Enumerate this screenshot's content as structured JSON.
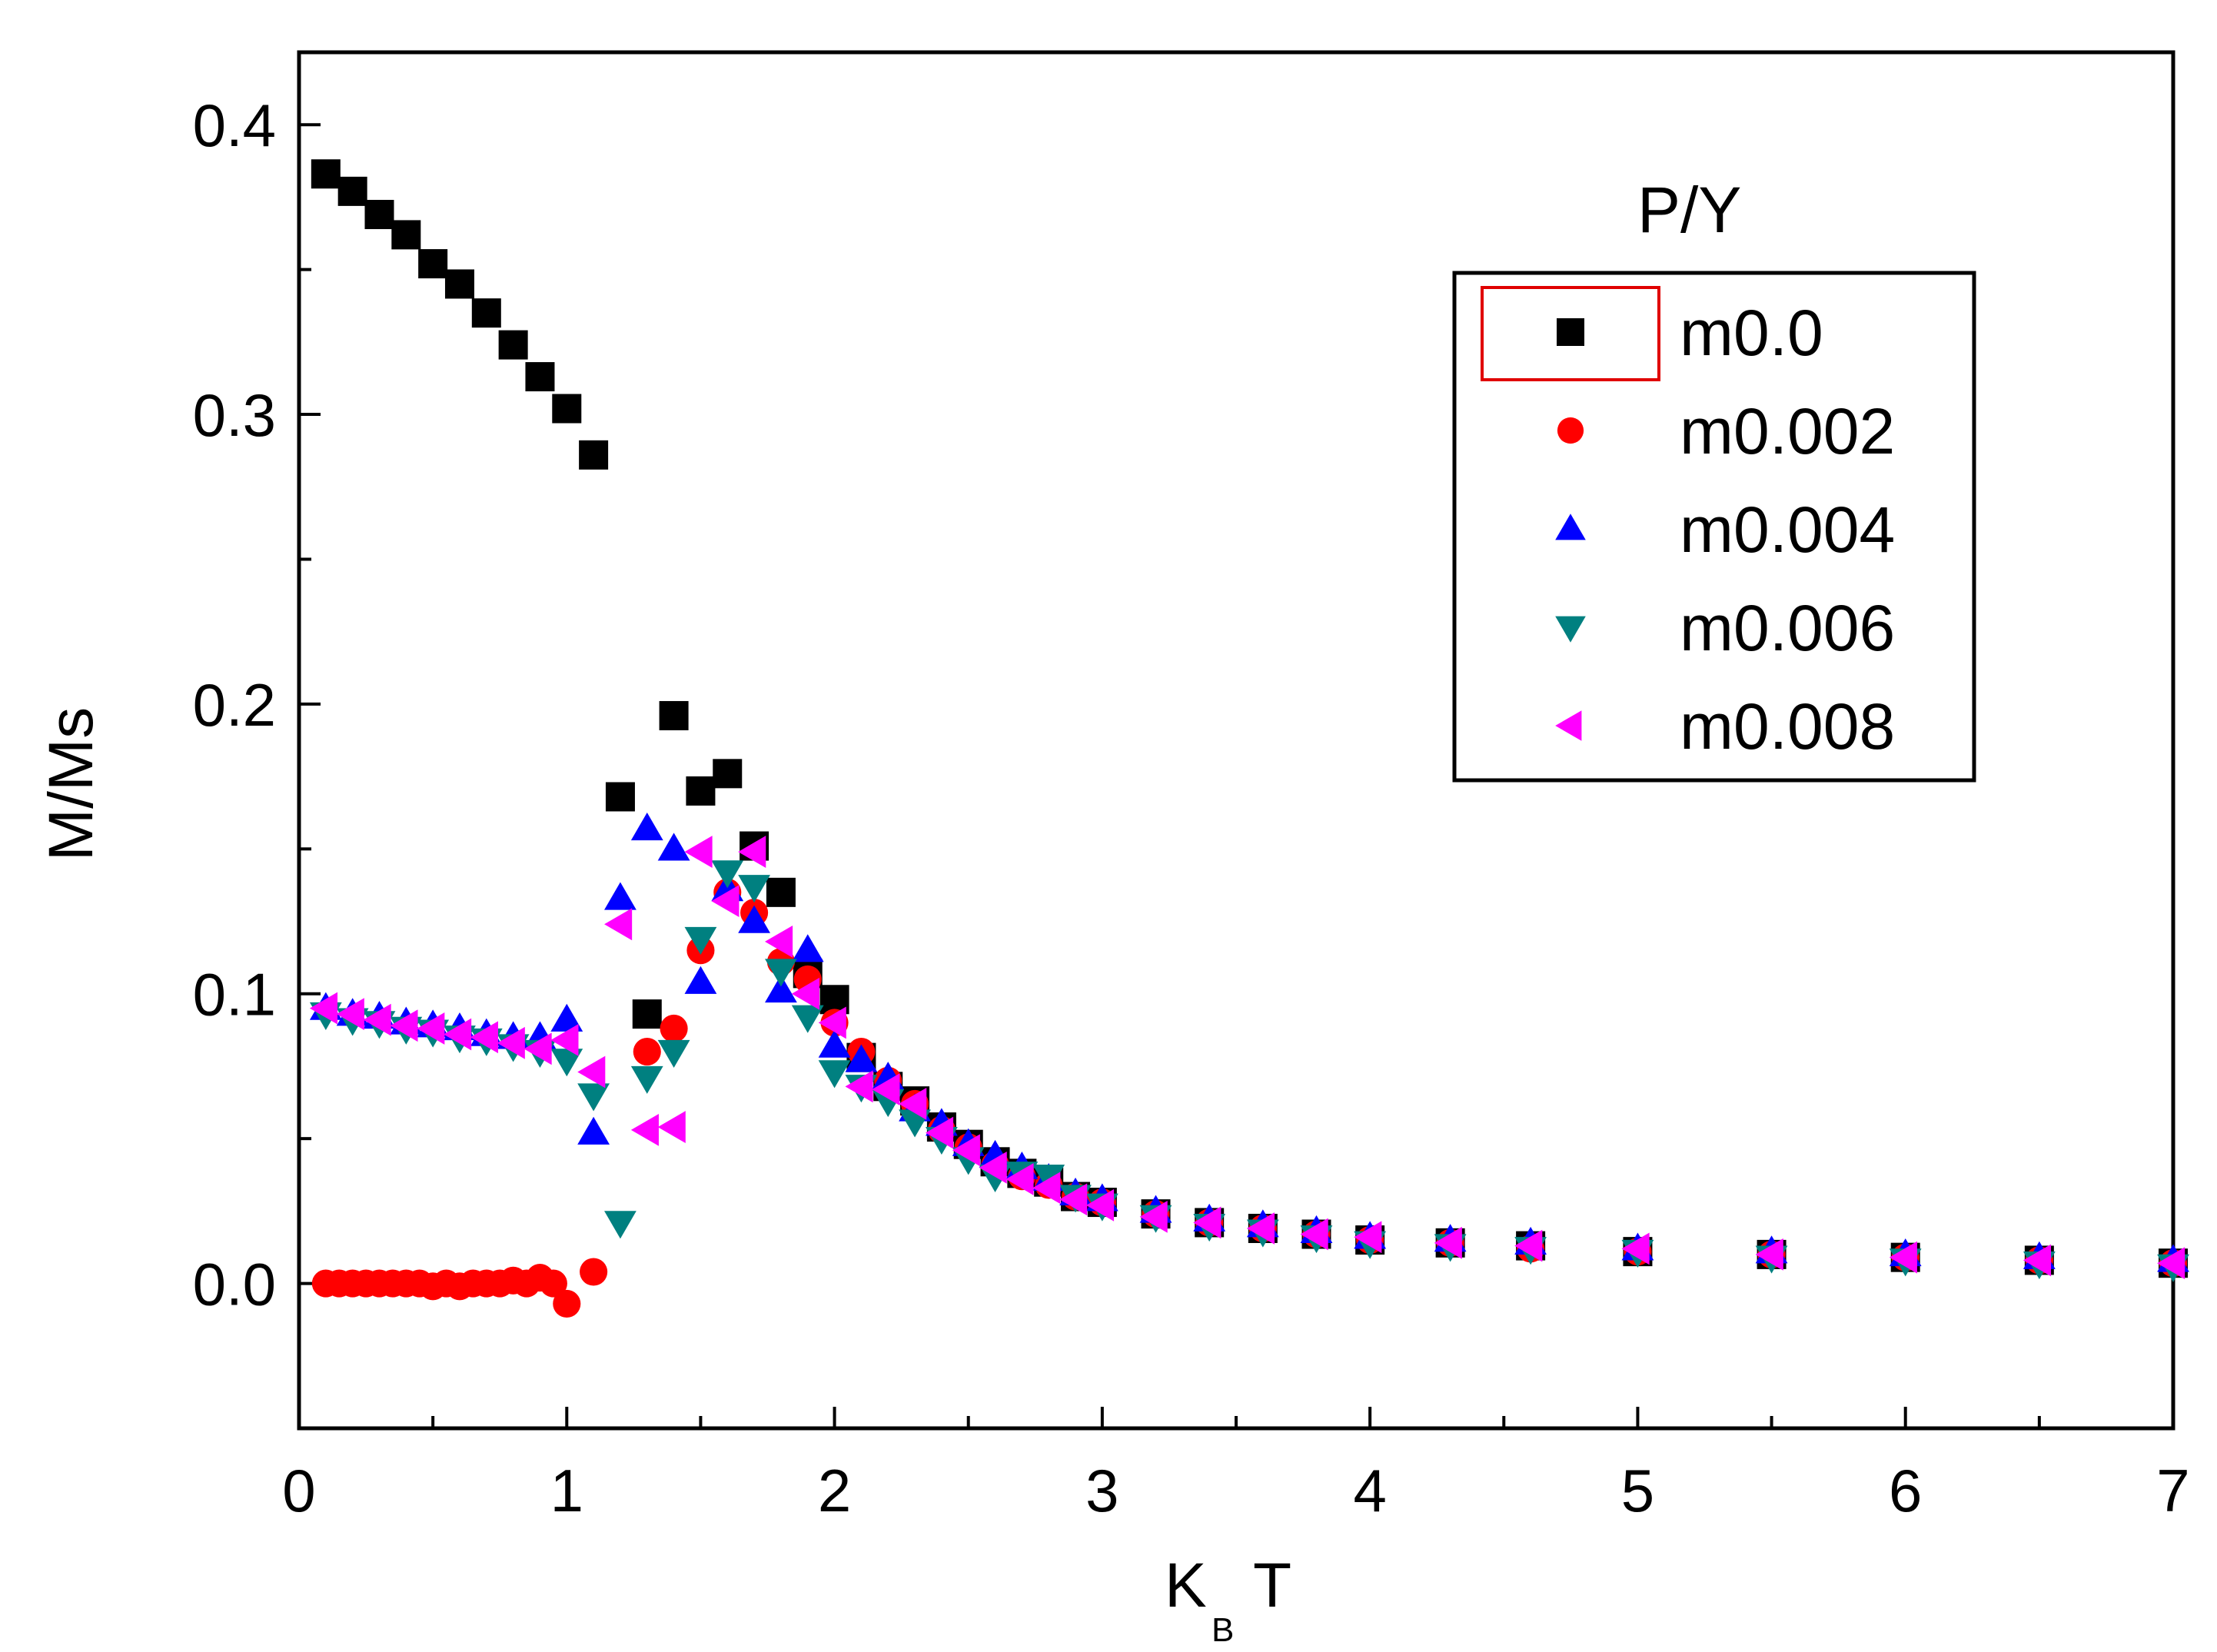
{
  "chart_data": {
    "type": "scatter",
    "title": "",
    "xlabel": "K",
    "xlabel_subscript": "B",
    "xlabel_suffix": "T",
    "ylabel": "M/Ms",
    "xlim": [
      0,
      7
    ],
    "ylim": [
      -0.05,
      0.425
    ],
    "xticks": [
      0,
      1,
      2,
      3,
      4,
      5,
      6,
      7
    ],
    "xtick_labels": [
      "0",
      "1",
      "2",
      "3",
      "4",
      "5",
      "6",
      "7"
    ],
    "yticks": [
      0.0,
      0.1,
      0.2,
      0.3,
      0.4
    ],
    "ytick_labels": [
      "0.0",
      "0.1",
      "0.2",
      "0.3",
      "0.4"
    ],
    "grid": false,
    "legend": {
      "title": "P/Y",
      "placement": "top-right"
    },
    "series": [
      {
        "name": "m0.0",
        "marker": "square",
        "color": "#000000",
        "x": [
          0.1,
          0.2,
          0.3,
          0.4,
          0.5,
          0.6,
          0.7,
          0.8,
          0.9,
          1.0,
          1.1,
          1.2,
          1.3,
          1.4,
          1.5,
          1.6,
          1.7,
          1.8,
          1.9,
          2.0,
          2.1,
          2.2,
          2.3,
          2.4,
          2.5,
          2.6,
          2.7,
          2.8,
          2.9,
          3.0,
          3.2,
          3.4,
          3.6,
          3.8,
          4.0,
          4.3,
          4.6,
          5.0,
          5.5,
          6.0,
          6.5,
          7.0
        ],
        "y": [
          0.383,
          0.377,
          0.369,
          0.362,
          0.352,
          0.345,
          0.335,
          0.324,
          0.313,
          0.302,
          0.286,
          0.168,
          0.093,
          0.196,
          0.17,
          0.176,
          0.151,
          0.135,
          0.107,
          0.098,
          0.078,
          0.068,
          0.063,
          0.054,
          0.048,
          0.042,
          0.038,
          0.035,
          0.03,
          0.028,
          0.024,
          0.021,
          0.019,
          0.017,
          0.015,
          0.014,
          0.013,
          0.011,
          0.01,
          0.009,
          0.008,
          0.007
        ]
      },
      {
        "name": "m0.002",
        "marker": "circle",
        "color": "#ff0000",
        "x": [
          0.1,
          0.15,
          0.2,
          0.25,
          0.3,
          0.35,
          0.4,
          0.45,
          0.5,
          0.55,
          0.6,
          0.65,
          0.7,
          0.75,
          0.8,
          0.85,
          0.9,
          0.95,
          1.0,
          1.1,
          1.3,
          1.4,
          1.5,
          1.6,
          1.7,
          1.8,
          1.9,
          2.0,
          2.1,
          2.2,
          2.3,
          2.4,
          2.5,
          2.6,
          2.7,
          2.8,
          2.9,
          3.0,
          3.2,
          3.4,
          3.6,
          3.8,
          4.0,
          4.3,
          4.6,
          5.0,
          5.5,
          6.0,
          6.5,
          7.0
        ],
        "y": [
          0.0,
          0.0,
          0.0,
          0.0,
          0.0,
          0.0,
          0.0,
          0.0,
          -0.001,
          0.0,
          -0.001,
          0.0,
          0.0,
          0.0,
          0.001,
          0.0,
          0.002,
          0.0,
          -0.007,
          0.004,
          0.08,
          0.088,
          0.115,
          0.135,
          0.128,
          0.111,
          0.105,
          0.09,
          0.08,
          0.07,
          0.062,
          0.053,
          0.047,
          0.041,
          0.037,
          0.034,
          0.03,
          0.028,
          0.024,
          0.021,
          0.019,
          0.017,
          0.015,
          0.014,
          0.012,
          0.011,
          0.01,
          0.009,
          0.008,
          0.007
        ]
      },
      {
        "name": "m0.004",
        "marker": "triangle-up",
        "color": "#0000ff",
        "x": [
          0.1,
          0.2,
          0.3,
          0.4,
          0.5,
          0.6,
          0.7,
          0.8,
          0.9,
          1.0,
          1.1,
          1.2,
          1.3,
          1.4,
          1.5,
          1.6,
          1.7,
          1.8,
          1.9,
          2.0,
          2.1,
          2.2,
          2.3,
          2.4,
          2.5,
          2.6,
          2.7,
          2.8,
          2.9,
          3.0,
          3.2,
          3.4,
          3.6,
          3.8,
          4.0,
          4.3,
          4.6,
          5.0,
          5.5,
          6.0,
          6.5,
          7.0
        ],
        "y": [
          0.095,
          0.093,
          0.092,
          0.09,
          0.089,
          0.088,
          0.086,
          0.085,
          0.085,
          0.091,
          0.052,
          0.133,
          0.157,
          0.15,
          0.104,
          0.136,
          0.125,
          0.101,
          0.115,
          0.082,
          0.077,
          0.071,
          0.06,
          0.055,
          0.048,
          0.044,
          0.04,
          0.036,
          0.031,
          0.029,
          0.025,
          0.022,
          0.02,
          0.018,
          0.016,
          0.015,
          0.014,
          0.012,
          0.011,
          0.01,
          0.009,
          0.008
        ]
      },
      {
        "name": "m0.006",
        "marker": "triangle-down",
        "color": "#008080",
        "x": [
          0.1,
          0.2,
          0.3,
          0.4,
          0.5,
          0.6,
          0.7,
          0.8,
          0.9,
          1.0,
          1.1,
          1.2,
          1.3,
          1.4,
          1.5,
          1.6,
          1.7,
          1.8,
          1.9,
          2.0,
          2.1,
          2.2,
          2.3,
          2.4,
          2.5,
          2.6,
          2.7,
          2.8,
          2.9,
          3.0,
          3.2,
          3.4,
          3.6,
          3.8,
          4.0,
          4.3,
          4.6,
          5.0,
          5.5,
          6.0,
          6.5,
          7.0
        ],
        "y": [
          0.093,
          0.091,
          0.09,
          0.088,
          0.087,
          0.085,
          0.084,
          0.082,
          0.08,
          0.077,
          0.065,
          0.021,
          0.071,
          0.08,
          0.119,
          0.142,
          0.137,
          0.108,
          0.092,
          0.073,
          0.068,
          0.063,
          0.056,
          0.05,
          0.043,
          0.037,
          0.038,
          0.037,
          0.03,
          0.027,
          0.023,
          0.02,
          0.018,
          0.016,
          0.014,
          0.013,
          0.012,
          0.011,
          0.009,
          0.008,
          0.007,
          0.006
        ]
      },
      {
        "name": "m0.008",
        "marker": "triangle-left",
        "color": "#ff00ff",
        "x": [
          0.1,
          0.2,
          0.3,
          0.4,
          0.5,
          0.6,
          0.7,
          0.8,
          0.9,
          1.0,
          1.1,
          1.2,
          1.3,
          1.4,
          1.5,
          1.6,
          1.7,
          1.8,
          1.9,
          2.0,
          2.1,
          2.2,
          2.3,
          2.4,
          2.5,
          2.6,
          2.7,
          2.8,
          2.9,
          3.0,
          3.2,
          3.4,
          3.6,
          3.8,
          4.0,
          4.3,
          4.6,
          5.0,
          5.5,
          6.0,
          6.5,
          7.0
        ],
        "y": [
          0.095,
          0.093,
          0.091,
          0.089,
          0.088,
          0.086,
          0.085,
          0.083,
          0.081,
          0.084,
          0.073,
          0.124,
          0.053,
          0.054,
          0.149,
          0.132,
          0.149,
          0.118,
          0.1,
          0.09,
          0.068,
          0.067,
          0.062,
          0.052,
          0.046,
          0.04,
          0.036,
          0.033,
          0.029,
          0.027,
          0.023,
          0.021,
          0.019,
          0.017,
          0.016,
          0.014,
          0.013,
          0.012,
          0.01,
          0.009,
          0.008,
          0.007
        ]
      }
    ]
  }
}
